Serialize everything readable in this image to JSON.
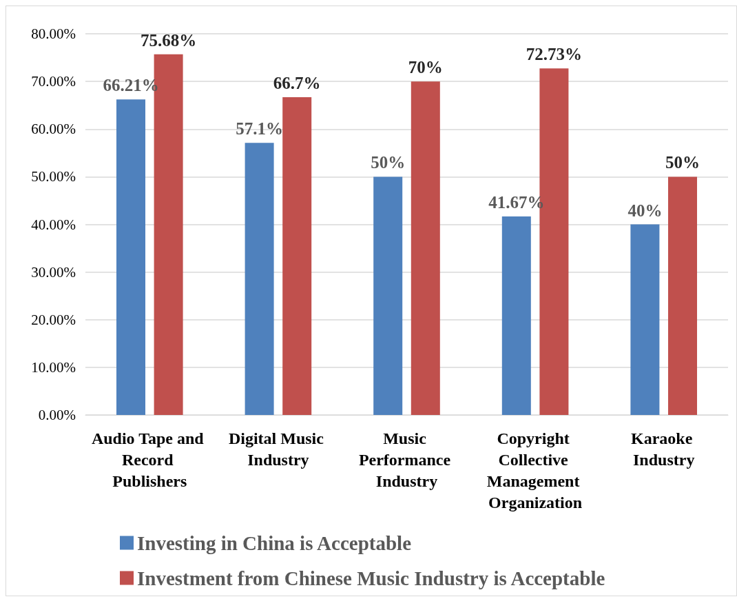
{
  "chart_data": {
    "type": "bar",
    "categories": [
      "Audio Tape and Record Publishers",
      "Digital Music Industry",
      "Music Performance Industry",
      "Copyright Collective Management Organization",
      "Karaoke Industry"
    ],
    "series": [
      {
        "name": "Investing in China is Acceptable",
        "color": "#4f81bd",
        "values": [
          66.21,
          57.1,
          50,
          41.67,
          40
        ],
        "value_labels": [
          "66.21%",
          "57.1%",
          "50%",
          "41.67%",
          "40%"
        ]
      },
      {
        "name": "Investment from Chinese Music Industry is Acceptable",
        "color": "#c0504d",
        "values": [
          75.68,
          66.7,
          70,
          72.73,
          50
        ],
        "value_labels": [
          "75.68%",
          "66.7%",
          "70%",
          "72.73%",
          "50%"
        ]
      }
    ],
    "ylim": [
      0,
      80
    ],
    "yticks": [
      {
        "value": 0,
        "label": "0.00%"
      },
      {
        "value": 10,
        "label": "10.00%"
      },
      {
        "value": 20,
        "label": "20.00%"
      },
      {
        "value": 30,
        "label": "30.00%"
      },
      {
        "value": 40,
        "label": "40.00%"
      },
      {
        "value": 50,
        "label": "50.00%"
      },
      {
        "value": 60,
        "label": "60.00%"
      },
      {
        "value": 70,
        "label": "70.00%"
      },
      {
        "value": 80,
        "label": "80.00%"
      }
    ],
    "grid": "y",
    "legend": "bottom"
  }
}
